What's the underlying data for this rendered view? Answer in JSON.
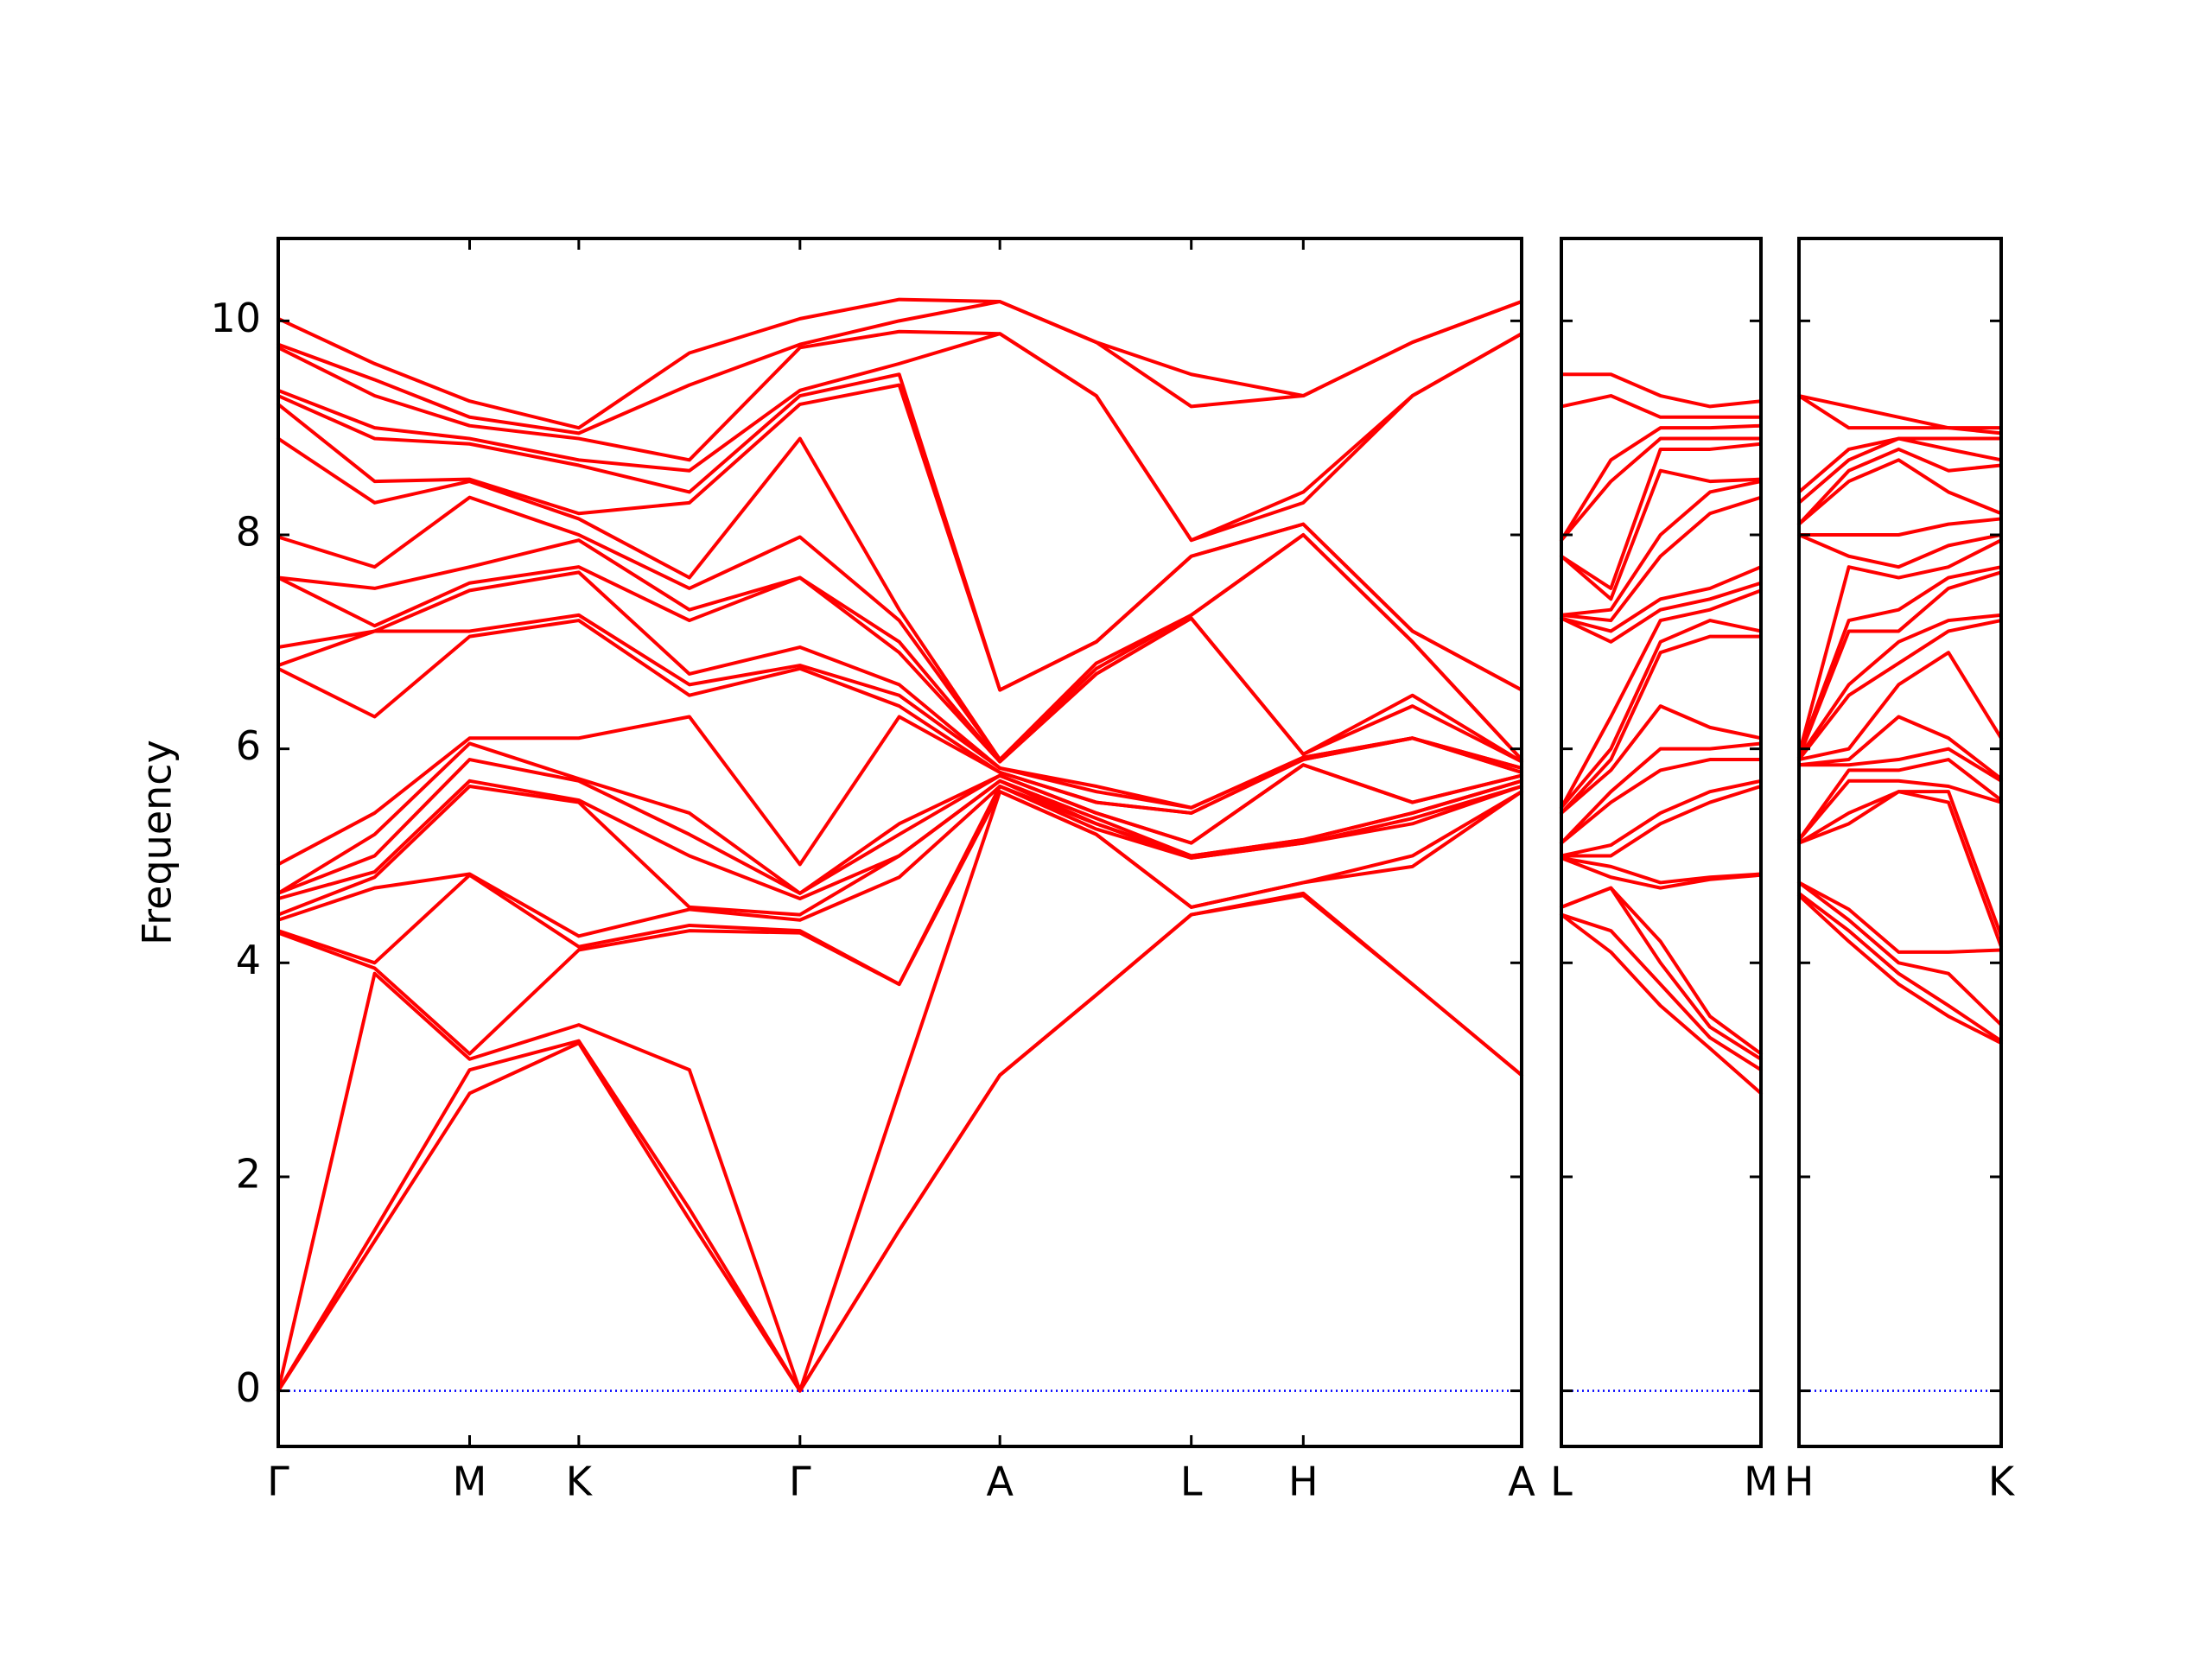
{
  "chart_data": [
    {
      "type": "line",
      "ylabel": "Frequency",
      "ytick_labels": true,
      "color": "#ff0000",
      "baseline": {
        "value": 0,
        "color": "#0000ff",
        "style": "dotted"
      },
      "x": [
        0,
        0.68,
        1.35,
        2.12,
        2.9,
        3.68,
        4.38,
        5.09,
        5.77,
        6.44,
        7.23,
        8.0,
        8.77
      ],
      "xlim": [
        0,
        8.77
      ],
      "xticks": [
        {
          "value": 0,
          "label": "Γ"
        },
        {
          "value": 1.35,
          "label": "M"
        },
        {
          "value": 2.12,
          "label": "K"
        },
        {
          "value": 3.68,
          "label": "Γ"
        },
        {
          "value": 5.09,
          "label": "A"
        },
        {
          "value": 6.44,
          "label": "L"
        },
        {
          "value": 7.23,
          "label": "H"
        },
        {
          "value": 8.77,
          "label": "A"
        }
      ],
      "ylim": [
        -0.52,
        10.77
      ],
      "yticks": [
        0,
        2,
        4,
        6,
        8,
        10
      ],
      "series": [
        {
          "values": [
            0,
            1.4,
            2.78,
            3.25,
            1.6,
            0,
            1.5,
            2.95,
            3.7,
            4.45,
            4.63,
            3.8,
            2.95
          ]
        },
        {
          "values": [
            0,
            1.5,
            3.0,
            3.27,
            1.7,
            0,
            1.5,
            2.95,
            3.7,
            4.45,
            4.65,
            3.8,
            2.95
          ]
        },
        {
          "values": [
            0,
            3.9,
            3.1,
            3.42,
            3.0,
            0,
            2.8,
            5.6,
            5.2,
            4.52,
            4.75,
            4.9,
            5.6
          ]
        },
        {
          "values": [
            4.28,
            3.95,
            3.15,
            4.12,
            4.3,
            4.28,
            3.8,
            5.6,
            5.2,
            4.52,
            4.75,
            5.0,
            5.6
          ]
        },
        {
          "values": [
            4.3,
            4.0,
            4.82,
            4.15,
            4.35,
            4.3,
            3.8,
            5.65,
            5.25,
            4.98,
            5.12,
            5.3,
            5.65
          ]
        },
        {
          "values": [
            4.4,
            4.7,
            4.83,
            4.25,
            4.5,
            4.4,
            4.8,
            5.65,
            5.3,
            4.98,
            5.12,
            5.35,
            5.65
          ]
        },
        {
          "values": [
            4.45,
            4.8,
            5.65,
            5.5,
            4.52,
            4.45,
            5.0,
            5.7,
            5.3,
            5.0,
            5.15,
            5.4,
            5.7
          ]
        },
        {
          "values": [
            4.6,
            4.85,
            5.7,
            5.52,
            5.0,
            4.6,
            5.0,
            5.7,
            5.35,
            5.0,
            5.15,
            5.4,
            5.7
          ]
        },
        {
          "values": [
            4.65,
            5.0,
            5.9,
            5.7,
            5.2,
            4.65,
            5.2,
            5.75,
            5.4,
            5.12,
            5.85,
            5.5,
            5.75
          ]
        },
        {
          "values": [
            4.65,
            5.2,
            6.05,
            5.72,
            5.4,
            4.65,
            5.3,
            5.75,
            5.4,
            5.12,
            5.85,
            5.5,
            5.75
          ]
        },
        {
          "values": [
            4.92,
            5.4,
            6.1,
            6.1,
            6.3,
            4.92,
            6.3,
            5.78,
            5.5,
            5.4,
            5.9,
            6.1,
            5.78
          ]
        },
        {
          "values": [
            6.75,
            6.3,
            7.05,
            7.2,
            6.5,
            6.75,
            6.4,
            5.78,
            5.5,
            5.4,
            5.9,
            6.1,
            5.78
          ]
        },
        {
          "values": [
            6.78,
            7.1,
            7.1,
            7.25,
            6.6,
            6.78,
            6.5,
            5.82,
            5.6,
            5.45,
            5.92,
            6.1,
            5.82
          ]
        },
        {
          "values": [
            6.95,
            7.1,
            7.48,
            7.65,
            6.7,
            6.95,
            6.6,
            5.82,
            5.65,
            5.45,
            5.92,
            6.1,
            5.82
          ]
        },
        {
          "values": [
            7.6,
            7.15,
            7.55,
            7.7,
            7.2,
            7.6,
            6.9,
            5.88,
            6.7,
            7.22,
            5.95,
            6.4,
            5.88
          ]
        },
        {
          "values": [
            7.6,
            7.5,
            7.7,
            7.95,
            7.3,
            7.6,
            7.0,
            5.88,
            6.7,
            7.22,
            5.95,
            6.5,
            5.88
          ]
        },
        {
          "values": [
            7.98,
            7.7,
            8.35,
            8.0,
            7.5,
            7.98,
            7.2,
            5.9,
            6.75,
            7.25,
            8.0,
            7.0,
            5.9
          ]
        },
        {
          "values": [
            8.9,
            8.3,
            8.5,
            8.15,
            7.6,
            8.9,
            7.3,
            5.9,
            6.8,
            7.25,
            8.0,
            7.0,
            5.9
          ]
        },
        {
          "values": [
            9.22,
            8.5,
            8.52,
            8.2,
            8.3,
            9.22,
            9.4,
            6.55,
            7.0,
            7.8,
            8.1,
            7.1,
            6.55
          ]
        },
        {
          "values": [
            9.3,
            8.9,
            8.85,
            8.65,
            8.4,
            9.3,
            9.5,
            6.55,
            7.0,
            7.8,
            8.1,
            7.1,
            6.55
          ]
        },
        {
          "values": [
            9.35,
            9.0,
            8.9,
            8.7,
            8.6,
            9.35,
            9.6,
            9.88,
            9.3,
            7.95,
            8.3,
            9.3,
            9.88
          ]
        },
        {
          "values": [
            9.75,
            9.3,
            9.02,
            8.9,
            8.7,
            9.75,
            9.9,
            9.88,
            9.3,
            7.95,
            8.4,
            9.3,
            9.88
          ]
        },
        {
          "values": [
            9.78,
            9.45,
            9.1,
            8.95,
            9.4,
            9.78,
            10.0,
            10.18,
            9.8,
            9.2,
            9.3,
            9.8,
            10.18
          ]
        },
        {
          "values": [
            10.02,
            9.6,
            9.25,
            9.0,
            9.7,
            10.02,
            10.2,
            10.18,
            9.8,
            9.5,
            9.3,
            9.8,
            10.18
          ]
        }
      ]
    },
    {
      "type": "line",
      "ytick_labels": false,
      "color": "#ff0000",
      "baseline": {
        "value": 0,
        "color": "#0000ff",
        "style": "dotted"
      },
      "x": [
        0,
        0.35,
        0.7,
        1.05,
        1.41
      ],
      "xlim": [
        0,
        1.41
      ],
      "xticks": [
        {
          "value": 0,
          "label": "L"
        },
        {
          "value": 1.41,
          "label": "M"
        }
      ],
      "ylim": [
        -0.52,
        10.77
      ],
      "yticks": [
        0,
        2,
        4,
        6,
        8,
        10
      ],
      "series": [
        {
          "values": [
            4.45,
            4.1,
            3.6,
            3.2,
            2.78
          ]
        },
        {
          "values": [
            4.45,
            4.3,
            3.8,
            3.3,
            3.0
          ]
        },
        {
          "values": [
            4.52,
            4.7,
            4.0,
            3.4,
            3.1
          ]
        },
        {
          "values": [
            4.52,
            4.7,
            4.2,
            3.5,
            3.15
          ]
        },
        {
          "values": [
            4.98,
            4.8,
            4.7,
            4.78,
            4.82
          ]
        },
        {
          "values": [
            4.98,
            4.9,
            4.75,
            4.8,
            4.83
          ]
        },
        {
          "values": [
            5.0,
            5.0,
            5.3,
            5.5,
            5.65
          ]
        },
        {
          "values": [
            5.0,
            5.1,
            5.4,
            5.6,
            5.7
          ]
        },
        {
          "values": [
            5.12,
            5.5,
            5.8,
            5.9,
            5.9
          ]
        },
        {
          "values": [
            5.12,
            5.6,
            6.0,
            6.0,
            6.05
          ]
        },
        {
          "values": [
            5.4,
            5.8,
            6.4,
            6.2,
            6.1
          ]
        },
        {
          "values": [
            5.4,
            5.9,
            6.9,
            7.05,
            7.05
          ]
        },
        {
          "values": [
            5.45,
            6.0,
            7.0,
            7.2,
            7.1
          ]
        },
        {
          "values": [
            5.45,
            6.3,
            7.2,
            7.3,
            7.48
          ]
        },
        {
          "values": [
            7.22,
            7.0,
            7.3,
            7.4,
            7.55
          ]
        },
        {
          "values": [
            7.22,
            7.1,
            7.4,
            7.5,
            7.7
          ]
        },
        {
          "values": [
            7.25,
            7.2,
            7.8,
            8.2,
            8.35
          ]
        },
        {
          "values": [
            7.25,
            7.3,
            8.0,
            8.4,
            8.5
          ]
        },
        {
          "values": [
            7.8,
            7.4,
            8.6,
            8.5,
            8.52
          ]
        },
        {
          "values": [
            7.8,
            7.5,
            8.8,
            8.8,
            8.85
          ]
        },
        {
          "values": [
            7.95,
            8.5,
            8.9,
            8.9,
            8.9
          ]
        },
        {
          "values": [
            7.95,
            8.7,
            9.0,
            9.0,
            9.02
          ]
        },
        {
          "values": [
            9.2,
            9.3,
            9.1,
            9.1,
            9.1
          ]
        },
        {
          "values": [
            9.5,
            9.5,
            9.3,
            9.2,
            9.25
          ]
        }
      ]
    },
    {
      "type": "line",
      "ytick_labels": false,
      "color": "#ff0000",
      "baseline": {
        "value": 0,
        "color": "#0000ff",
        "style": "dotted"
      },
      "x": [
        0,
        0.35,
        0.7,
        1.05,
        1.42
      ],
      "xlim": [
        0,
        1.42
      ],
      "xticks": [
        {
          "value": 0,
          "label": "H"
        },
        {
          "value": 1.42,
          "label": "K"
        }
      ],
      "ylim": [
        -0.52,
        10.77
      ],
      "yticks": [
        0,
        2,
        4,
        6,
        8,
        10
      ],
      "series": [
        {
          "values": [
            4.63,
            4.2,
            3.8,
            3.5,
            3.25
          ]
        },
        {
          "values": [
            4.65,
            4.3,
            3.9,
            3.6,
            3.27
          ]
        },
        {
          "values": [
            4.75,
            4.4,
            4.0,
            3.9,
            3.42
          ]
        },
        {
          "values": [
            4.75,
            4.5,
            4.1,
            4.1,
            4.12
          ]
        },
        {
          "values": [
            5.12,
            5.3,
            5.6,
            5.5,
            4.15
          ]
        },
        {
          "values": [
            5.12,
            5.4,
            5.6,
            5.6,
            4.25
          ]
        },
        {
          "values": [
            5.15,
            5.7,
            5.7,
            5.65,
            5.5
          ]
        },
        {
          "values": [
            5.15,
            5.8,
            5.8,
            5.9,
            5.52
          ]
        },
        {
          "values": [
            5.85,
            5.85,
            5.9,
            6.0,
            5.7
          ]
        },
        {
          "values": [
            5.85,
            5.9,
            6.3,
            6.1,
            5.72
          ]
        },
        {
          "values": [
            5.9,
            6.0,
            6.6,
            6.9,
            6.1
          ]
        },
        {
          "values": [
            5.9,
            6.5,
            6.8,
            7.1,
            7.2
          ]
        },
        {
          "values": [
            5.92,
            6.6,
            7.0,
            7.2,
            7.25
          ]
        },
        {
          "values": [
            5.92,
            7.1,
            7.1,
            7.5,
            7.65
          ]
        },
        {
          "values": [
            5.95,
            7.2,
            7.3,
            7.6,
            7.7
          ]
        },
        {
          "values": [
            5.95,
            7.7,
            7.6,
            7.7,
            7.95
          ]
        },
        {
          "values": [
            8.0,
            7.8,
            7.7,
            7.9,
            8.0
          ]
        },
        {
          "values": [
            8.0,
            8.0,
            8.0,
            8.1,
            8.15
          ]
        },
        {
          "values": [
            8.1,
            8.5,
            8.7,
            8.4,
            8.2
          ]
        },
        {
          "values": [
            8.1,
            8.6,
            8.8,
            8.6,
            8.65
          ]
        },
        {
          "values": [
            8.3,
            8.7,
            8.9,
            8.8,
            8.7
          ]
        },
        {
          "values": [
            8.4,
            8.8,
            8.9,
            8.9,
            8.9
          ]
        },
        {
          "values": [
            9.3,
            9.0,
            9.0,
            9.0,
            8.95
          ]
        },
        {
          "values": [
            9.3,
            9.2,
            9.1,
            9.0,
            9.0
          ]
        }
      ]
    }
  ]
}
